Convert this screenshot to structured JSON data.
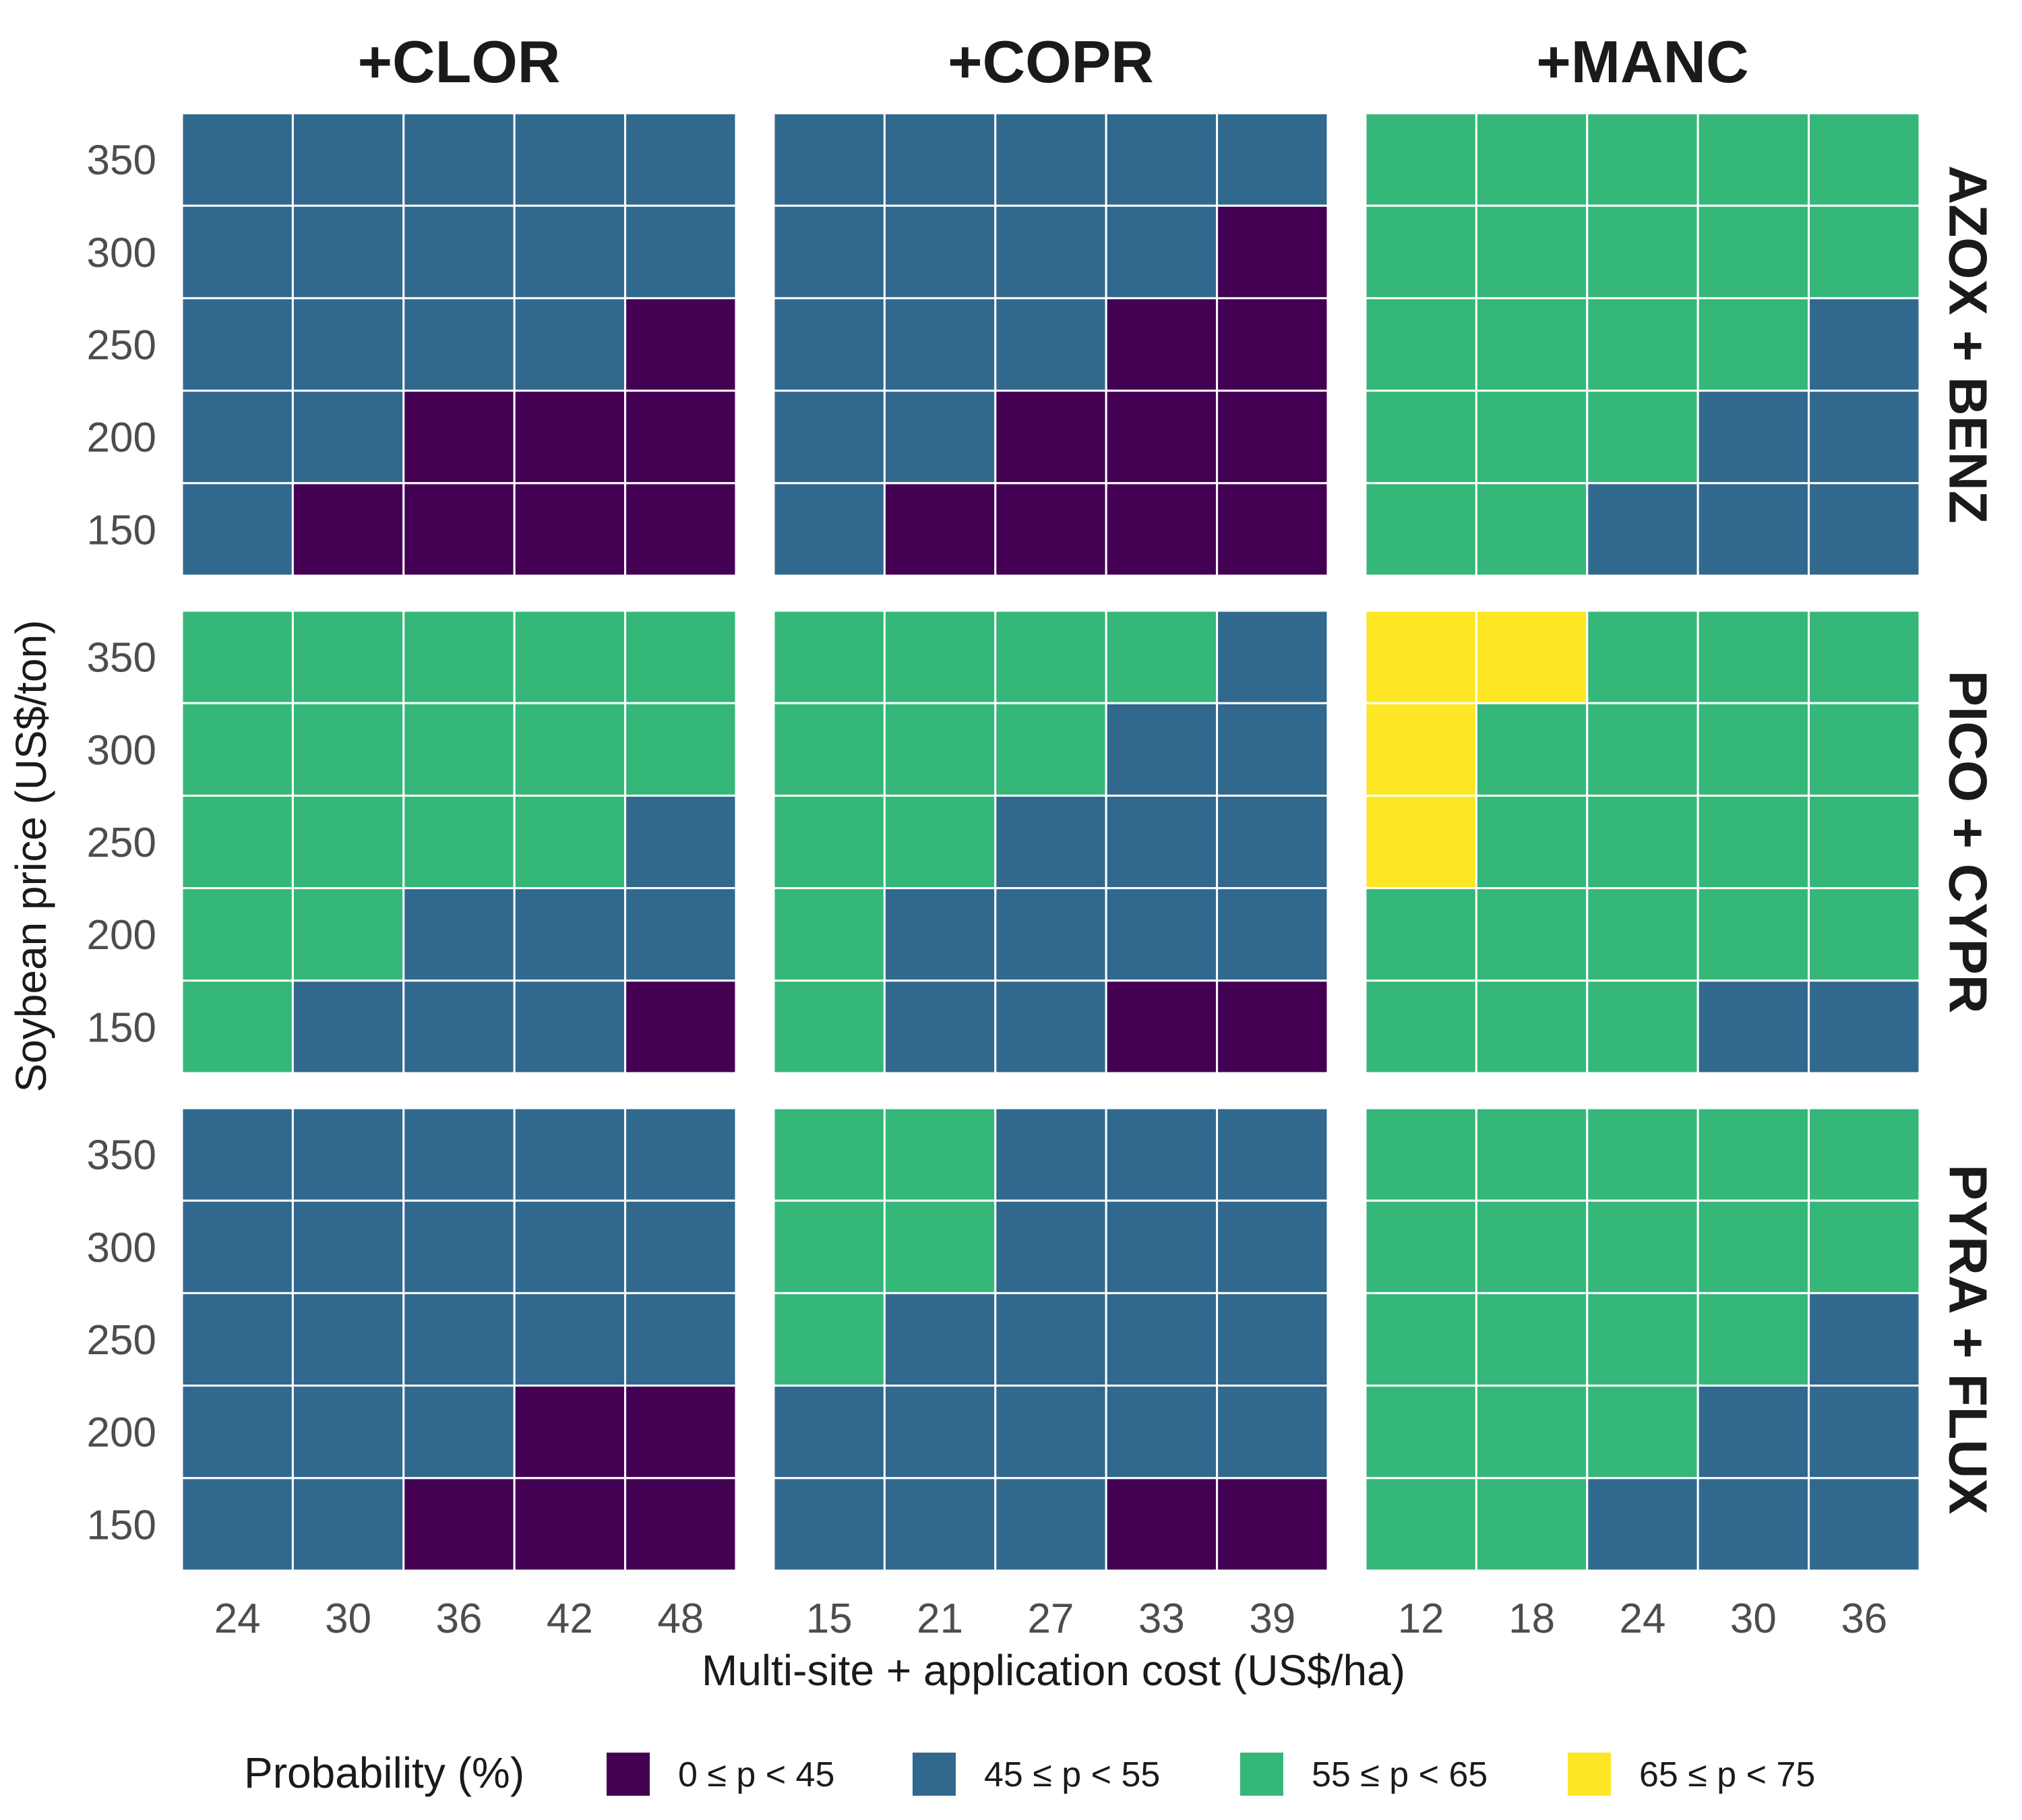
{
  "chart_data": {
    "type": "heatmap",
    "xlabel": "Multi-site + application cost (US$/ha)",
    "ylabel": "Soybean price (US$/ton)",
    "legend": {
      "title": "Probability (%)",
      "placement": "bottom",
      "classes": [
        {
          "label": "0 ≤ p < 45",
          "color": "#440154"
        },
        {
          "label": "45 ≤ p < 55",
          "color": "#31688E"
        },
        {
          "label": "55 ≤ p < 65",
          "color": "#35B779"
        },
        {
          "label": "65 ≤ p < 75",
          "color": "#FDE725"
        }
      ]
    },
    "columns": [
      {
        "label": "+CLOR",
        "x": [
          24,
          30,
          36,
          42,
          48
        ]
      },
      {
        "label": "+COPR",
        "x": [
          15,
          21,
          27,
          33,
          39
        ]
      },
      {
        "label": "+MANC",
        "x": [
          12,
          18,
          24,
          30,
          36
        ]
      }
    ],
    "rows": [
      {
        "label": "AZOX + BENZ"
      },
      {
        "label": "PICO + CYPR"
      },
      {
        "label": "PYRA + FLUX"
      }
    ],
    "y": [
      350,
      300,
      250,
      200,
      150
    ],
    "panels": [
      [
        {
          "row": "AZOX + BENZ",
          "column": "+CLOR",
          "classes": [
            [
              1,
              1,
              1,
              1,
              1
            ],
            [
              1,
              1,
              1,
              1,
              1
            ],
            [
              1,
              1,
              1,
              1,
              0
            ],
            [
              1,
              1,
              0,
              0,
              0
            ],
            [
              1,
              0,
              0,
              0,
              0
            ]
          ]
        },
        {
          "row": "AZOX + BENZ",
          "column": "+COPR",
          "classes": [
            [
              1,
              1,
              1,
              1,
              1
            ],
            [
              1,
              1,
              1,
              1,
              0
            ],
            [
              1,
              1,
              1,
              0,
              0
            ],
            [
              1,
              1,
              0,
              0,
              0
            ],
            [
              1,
              0,
              0,
              0,
              0
            ]
          ]
        },
        {
          "row": "AZOX + BENZ",
          "column": "+MANC",
          "classes": [
            [
              2,
              2,
              2,
              2,
              2
            ],
            [
              2,
              2,
              2,
              2,
              2
            ],
            [
              2,
              2,
              2,
              2,
              1
            ],
            [
              2,
              2,
              2,
              1,
              1
            ],
            [
              2,
              2,
              1,
              1,
              1
            ]
          ]
        }
      ],
      [
        {
          "row": "PICO + CYPR",
          "column": "+CLOR",
          "classes": [
            [
              2,
              2,
              2,
              2,
              2
            ],
            [
              2,
              2,
              2,
              2,
              2
            ],
            [
              2,
              2,
              2,
              2,
              1
            ],
            [
              2,
              2,
              1,
              1,
              1
            ],
            [
              2,
              1,
              1,
              1,
              0
            ]
          ]
        },
        {
          "row": "PICO + CYPR",
          "column": "+COPR",
          "classes": [
            [
              2,
              2,
              2,
              2,
              1
            ],
            [
              2,
              2,
              2,
              1,
              1
            ],
            [
              2,
              2,
              1,
              1,
              1
            ],
            [
              2,
              1,
              1,
              1,
              1
            ],
            [
              2,
              1,
              1,
              0,
              0
            ]
          ]
        },
        {
          "row": "PICO + CYPR",
          "column": "+MANC",
          "classes": [
            [
              3,
              3,
              2,
              2,
              2
            ],
            [
              3,
              2,
              2,
              2,
              2
            ],
            [
              3,
              2,
              2,
              2,
              2
            ],
            [
              2,
              2,
              2,
              2,
              2
            ],
            [
              2,
              2,
              2,
              1,
              1
            ]
          ]
        }
      ],
      [
        {
          "row": "PYRA + FLUX",
          "column": "+CLOR",
          "classes": [
            [
              1,
              1,
              1,
              1,
              1
            ],
            [
              1,
              1,
              1,
              1,
              1
            ],
            [
              1,
              1,
              1,
              1,
              1
            ],
            [
              1,
              1,
              1,
              0,
              0
            ],
            [
              1,
              1,
              0,
              0,
              0
            ]
          ]
        },
        {
          "row": "PYRA + FLUX",
          "column": "+COPR",
          "classes": [
            [
              2,
              2,
              1,
              1,
              1
            ],
            [
              2,
              2,
              1,
              1,
              1
            ],
            [
              2,
              1,
              1,
              1,
              1
            ],
            [
              1,
              1,
              1,
              1,
              1
            ],
            [
              1,
              1,
              1,
              0,
              0
            ]
          ]
        },
        {
          "row": "PYRA + FLUX",
          "column": "+MANC",
          "classes": [
            [
              2,
              2,
              2,
              2,
              2
            ],
            [
              2,
              2,
              2,
              2,
              2
            ],
            [
              2,
              2,
              2,
              2,
              1
            ],
            [
              2,
              2,
              2,
              1,
              1
            ],
            [
              2,
              2,
              1,
              1,
              1
            ]
          ]
        }
      ]
    ]
  }
}
